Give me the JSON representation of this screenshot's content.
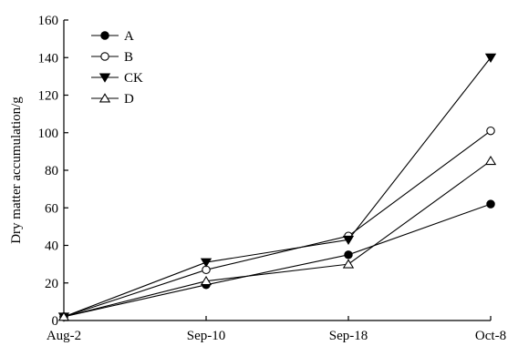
{
  "chart_data": {
    "type": "line",
    "title": "",
    "xlabel": "",
    "ylabel": "Dry matter accumulation/g",
    "categories": [
      "Aug-2",
      "Sep-10",
      "Sep-18",
      "Oct-8"
    ],
    "ylim": [
      0,
      160
    ],
    "yticks": [
      0,
      20,
      40,
      60,
      80,
      100,
      120,
      140,
      160
    ],
    "grid": false,
    "legend_position": "top-left",
    "series": [
      {
        "name": "A",
        "marker": "filled-circle",
        "values": [
          2,
          19,
          35,
          62
        ]
      },
      {
        "name": "B",
        "marker": "open-circle",
        "values": [
          2,
          27,
          45,
          101
        ]
      },
      {
        "name": "CK",
        "marker": "filled-triangle-down",
        "values": [
          2,
          31,
          43,
          140
        ]
      },
      {
        "name": "D",
        "marker": "open-triangle-up",
        "values": [
          2,
          21,
          30,
          85
        ]
      }
    ],
    "colors": {
      "line": "#000000",
      "background": "#ffffff"
    }
  }
}
